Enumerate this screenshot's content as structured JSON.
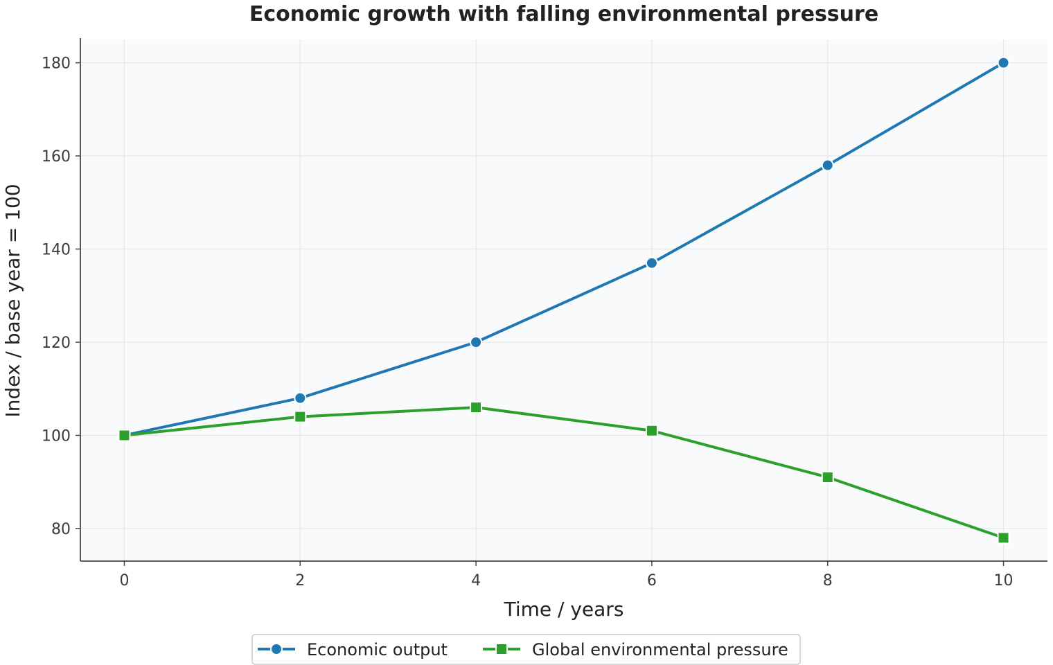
{
  "chart_data": {
    "type": "line",
    "title": "Economic growth with falling environmental pressure",
    "xlabel": "Time / years",
    "ylabel": "Index / base year = 100",
    "x": [
      0,
      2,
      4,
      6,
      8,
      10
    ],
    "x_ticks": [
      "0",
      "2",
      "4",
      "6",
      "8",
      "10"
    ],
    "y_ticks": [
      "80",
      "100",
      "120",
      "140",
      "160",
      "180"
    ],
    "xlim": [
      -0.5,
      10.5
    ],
    "ylim": [
      73,
      185
    ],
    "grid": true,
    "legend_position": "bottom-center",
    "series": [
      {
        "name": "Economic output",
        "values": [
          100,
          108,
          120,
          137,
          158,
          180
        ],
        "color": "#1f77b4",
        "marker": "circle"
      },
      {
        "name": "Global environmental pressure",
        "values": [
          100,
          104,
          106,
          101,
          91,
          78
        ],
        "color": "#2ca02c",
        "marker": "square"
      }
    ],
    "colors": {
      "plot_background": "#f9fafb",
      "grid": "#e6e6e6",
      "axis": "#444444"
    }
  }
}
